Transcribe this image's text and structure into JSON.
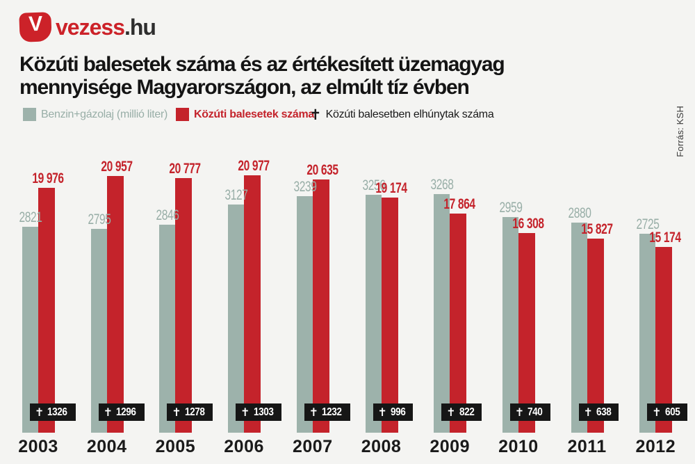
{
  "brand": {
    "icon_letter": "V",
    "name": "vezess",
    "suffix": ".hu"
  },
  "title": {
    "line1": "Közúti balesetek száma és az értékesített üzemagyag",
    "line2": "mennyisége Magyarországon, az elmúlt tíz évben"
  },
  "source": "Forrás: KSH",
  "colors": {
    "background": "#F4F4F2",
    "fuel_bar": "#9DB2AB",
    "fuel_label": "#98AEA7",
    "accident_bar": "#C4232B",
    "badge_background": "#161616",
    "badge_text": "#FFFFFF",
    "brand_red": "#CC2229",
    "text_dark": "#1A1A1A"
  },
  "legend": {
    "items": [
      {
        "type": "swatch",
        "color": "#9DB2AB",
        "label": "Benzin+gázolaj (millió liter)"
      },
      {
        "type": "swatch",
        "color": "#C4232B",
        "label": "Közúti balesetek száma"
      },
      {
        "type": "cross",
        "symbol": "✝",
        "label": "Közúti balesetben elhúnytak száma"
      }
    ]
  },
  "chart_data": {
    "type": "bar",
    "title": "Közúti balesetek száma és az értékesített üzemagyag mennyisége Magyarországon, az elmúlt tíz évben",
    "categories": [
      "2003",
      "2004",
      "2005",
      "2006",
      "2007",
      "2008",
      "2009",
      "2010",
      "2011",
      "2012"
    ],
    "series": [
      {
        "name": "Benzin+gázolaj (millió liter)",
        "color": "#9DB2AB",
        "values": [
          2821,
          2795,
          2846,
          3127,
          3239,
          3256,
          3268,
          2959,
          2880,
          2725
        ]
      },
      {
        "name": "Közúti balesetek száma",
        "color": "#C4232B",
        "values": [
          19976,
          20957,
          20777,
          20977,
          20635,
          19174,
          17864,
          16308,
          15827,
          15174
        ]
      },
      {
        "name": "Közúti balesetben elhúnytak száma",
        "symbol": "✝",
        "display": "badge",
        "values": [
          1326,
          1296,
          1278,
          1303,
          1232,
          996,
          822,
          740,
          638,
          605
        ]
      }
    ],
    "value_labels": true,
    "grid": false,
    "axes": "none",
    "legend_position": "top",
    "source": "Forrás: KSH"
  }
}
